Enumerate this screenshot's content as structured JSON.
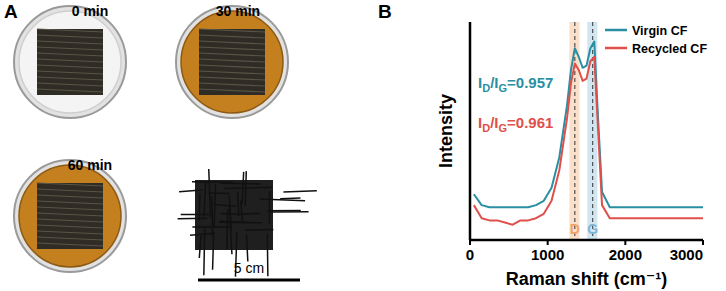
{
  "figure": {
    "panel_labels": [
      "A",
      "B"
    ],
    "photos": [
      {
        "label": "0 min",
        "liquid": false
      },
      {
        "label": "30 min",
        "liquid": true
      },
      {
        "label": "60 min",
        "liquid": true
      }
    ],
    "scale_bar": "5 cm"
  },
  "chart_data": {
    "type": "line",
    "xlabel": "Raman shift (cm⁻¹)",
    "ylabel": "Intensity",
    "x": [
      50,
      150,
      250,
      350,
      450,
      550,
      650,
      750,
      850,
      950,
      1050,
      1150,
      1250,
      1300,
      1350,
      1400,
      1450,
      1500,
      1550,
      1600,
      1650,
      1700,
      1800,
      1900,
      2000,
      2200,
      2400,
      2600,
      2800,
      3000
    ],
    "series": [
      {
        "name": "Virgin CF",
        "color": "#2a8fa3",
        "annotation": "ID/IG=0.957",
        "values": [
          0.21,
          0.16,
          0.15,
          0.15,
          0.15,
          0.15,
          0.15,
          0.15,
          0.16,
          0.18,
          0.24,
          0.38,
          0.62,
          0.78,
          0.88,
          0.84,
          0.79,
          0.8,
          0.88,
          0.91,
          0.55,
          0.22,
          0.15,
          0.15,
          0.15,
          0.15,
          0.15,
          0.15,
          0.15,
          0.15
        ]
      },
      {
        "name": "Recycled CF",
        "color": "#e0504a",
        "annotation": "ID/IG=0.961",
        "values": [
          0.16,
          0.1,
          0.09,
          0.09,
          0.08,
          0.07,
          0.09,
          0.09,
          0.1,
          0.12,
          0.18,
          0.32,
          0.56,
          0.72,
          0.81,
          0.78,
          0.73,
          0.74,
          0.82,
          0.84,
          0.5,
          0.16,
          0.1,
          0.1,
          0.1,
          0.1,
          0.1,
          0.1,
          0.1,
          0.1
        ]
      }
    ],
    "bands": [
      {
        "label": "D",
        "x": [
          1280,
          1410
        ],
        "center": 1350,
        "color": "#f0a46a"
      },
      {
        "label": "G",
        "x": [
          1510,
          1640
        ],
        "center": 1580,
        "color": "#7fb6d8"
      }
    ],
    "xlim": [
      0,
      3000
    ],
    "xticks": [
      0,
      1000,
      2000,
      3000
    ],
    "ylim": [
      0,
      1
    ],
    "tick_labels": "x",
    "legend": "upper right",
    "grid": false
  }
}
